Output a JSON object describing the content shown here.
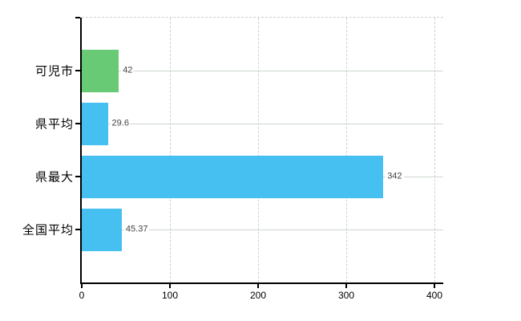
{
  "chart_data": {
    "type": "bar",
    "orientation": "horizontal",
    "title": "",
    "xlabel": "",
    "ylabel": "",
    "categories": [
      "可児市",
      "県平均",
      "県最大",
      "全国平均"
    ],
    "values": [
      42,
      29.6,
      342,
      45.37
    ],
    "value_labels": [
      "42",
      "29.6",
      "342",
      "45.37"
    ],
    "bar_colors": [
      "#68ca74",
      "#45c0f0",
      "#45c0f0",
      "#45c0f0"
    ],
    "x_ticks": [
      0,
      100,
      200,
      300,
      400
    ],
    "x_tick_labels": [
      "0",
      "100",
      "200",
      "300",
      "400"
    ],
    "xlim": [
      0,
      410
    ],
    "grid": true,
    "legend": false,
    "colors": {
      "background": "#ffffff",
      "axis": "#000000",
      "grid_horizontal": "#cdd8cd",
      "grid_vertical": "#c9d3dd",
      "plot_top_border": "#d3ced3",
      "value_label": "#444444",
      "tick_label": "#000000"
    }
  }
}
